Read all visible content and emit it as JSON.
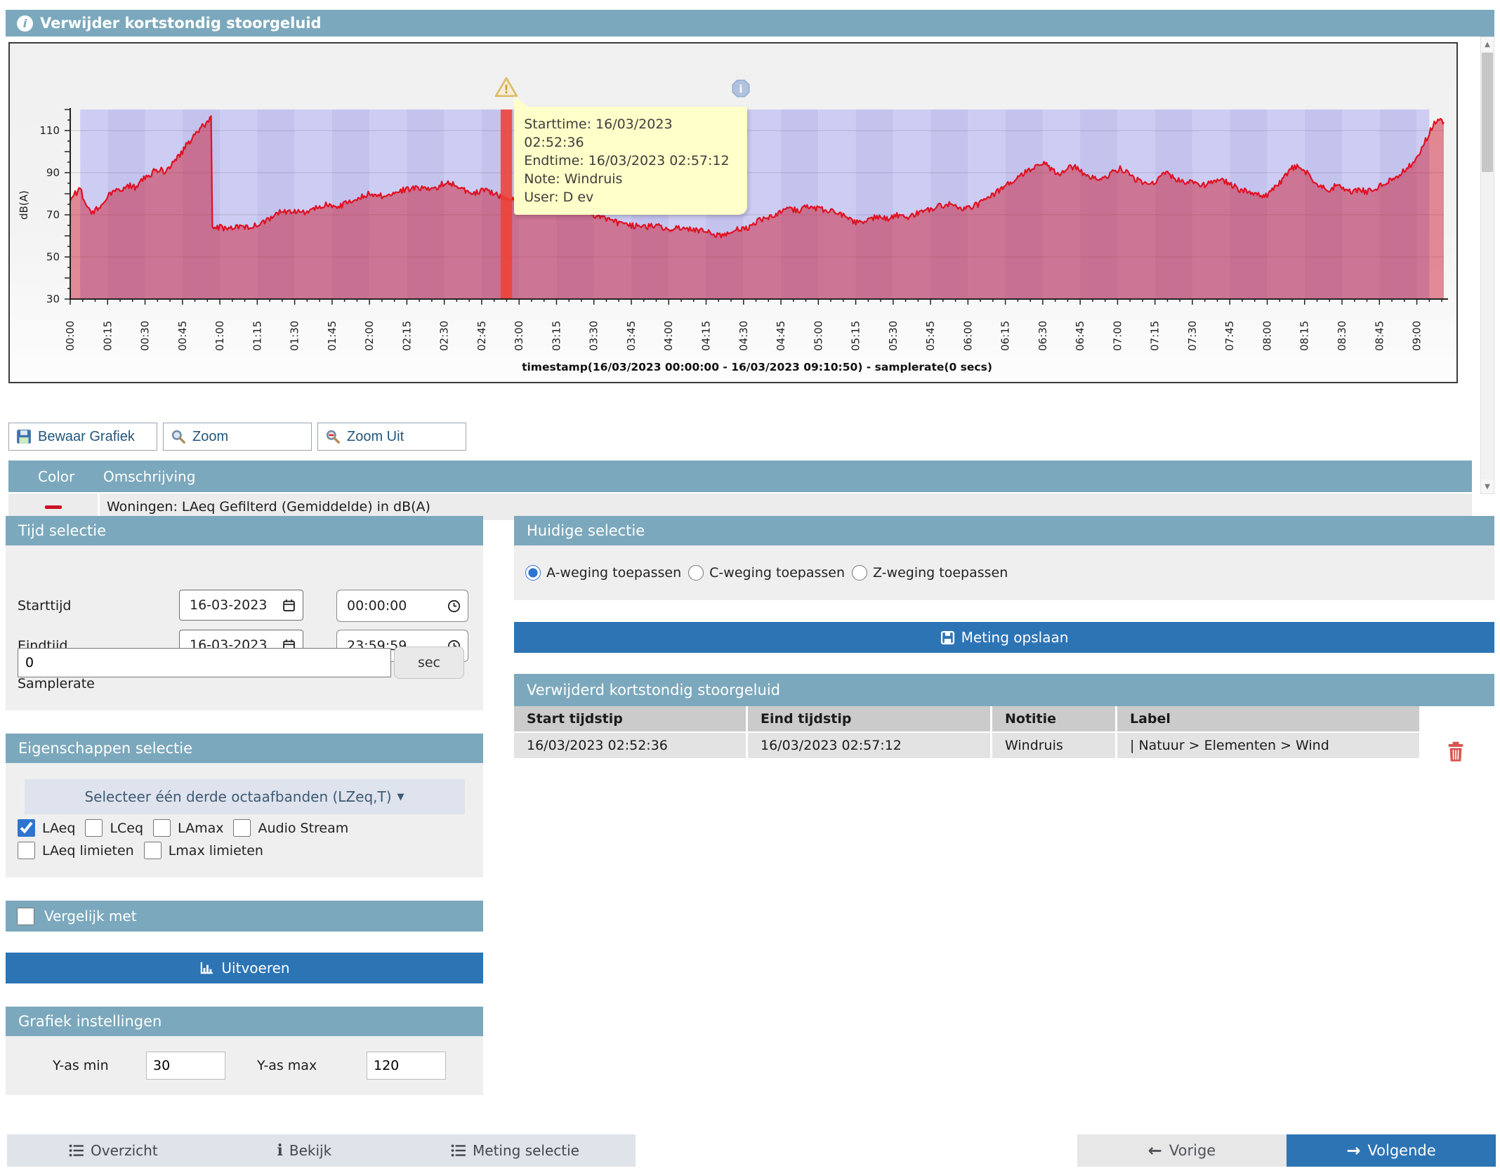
{
  "header": {
    "title": "Verwijder kortstondig stoorgeluid"
  },
  "chart": {
    "ylabel": "dB(A)",
    "caption": "timestamp(16/03/2023 00:00:00 - 16/03/2023 09:10:50) - samplerate(0 secs)",
    "tooltip": {
      "starttime": "Starttime: 16/03/2023 02:52:36",
      "endtime": "Endtime: 16/03/2023 02:57:12",
      "note": "Note: Windruis",
      "user": "User: D ev"
    }
  },
  "toolbar": {
    "save_graph": "Bewaar Grafiek",
    "zoom": "Zoom",
    "zoom_out": "Zoom Uit"
  },
  "legend": {
    "color_header": "Color",
    "description_header": "Omschrijving",
    "rows": [
      {
        "swatch_color": "#cc1122",
        "description": "Woningen: LAeq Gefilterd (Gemiddelde) in dB(A)"
      }
    ]
  },
  "tijd": {
    "title": "Tijd selectie",
    "starttijd_label": "Starttijd",
    "eindtijd_label": "Eindtijd",
    "start_date": "16-03-2023",
    "start_time": "00:00:00",
    "end_date": "16-03-2023",
    "end_time": "23:59:59",
    "samplerate_label": "Samplerate",
    "samplerate_value": "0",
    "samplerate_unit": "sec"
  },
  "eigenschappen": {
    "title": "Eigenschappen selectie",
    "dropdown_label": "Selecteer één derde octaafbanden (LZeq,T)",
    "checkboxes_row1": [
      {
        "label": "LAeq",
        "checked": true
      },
      {
        "label": "LCeq",
        "checked": false
      },
      {
        "label": "LAmax",
        "checked": false
      },
      {
        "label": "Audio Stream",
        "checked": false
      }
    ],
    "checkboxes_row2": [
      {
        "label": "LAeq limieten",
        "checked": false
      },
      {
        "label": "Lmax limieten",
        "checked": false
      }
    ]
  },
  "vergelijk": {
    "label": "Vergelijk met",
    "checked": false
  },
  "uitvoeren_label": "Uitvoeren",
  "grafiek": {
    "title": "Grafiek instellingen",
    "ymin_label": "Y-as min",
    "ymin_value": "30",
    "ymax_label": "Y-as max",
    "ymax_value": "120"
  },
  "huidige": {
    "title": "Huidige selectie",
    "radios": [
      {
        "label": "A-weging toepassen",
        "selected": true
      },
      {
        "label": "C-weging toepassen",
        "selected": false
      },
      {
        "label": "Z-weging toepassen",
        "selected": false
      }
    ]
  },
  "meting_opslaan_label": "Meting opslaan",
  "removed": {
    "title": "Verwijderd kortstondig stoorgeluid",
    "columns": [
      "Start tijdstip",
      "Eind tijdstip",
      "Notitie",
      "Label"
    ],
    "rows": [
      {
        "start": "16/03/2023 02:52:36",
        "end": "16/03/2023 02:57:12",
        "note": "Windruis",
        "label": "| Natuur > Elementen > Wind"
      }
    ]
  },
  "bottom_nav": {
    "overzicht": "Overzicht",
    "bekijk": "Bekijk",
    "meting_selectie": "Meting selectie",
    "vorige": "Vorige",
    "volgende": "Volgende"
  },
  "chart_data": {
    "type": "line",
    "title": "",
    "xlabel": "timestamp(16/03/2023 00:00:00 - 16/03/2023 09:10:50) - samplerate(0 secs)",
    "ylabel": "dB(A)",
    "ylim": [
      30,
      120
    ],
    "ygrid": [
      50,
      70,
      90,
      110
    ],
    "x_range_minutes": [
      0,
      550.83
    ],
    "x_tick_labels": [
      "00:00",
      "00:15",
      "00:30",
      "00:45",
      "01:00",
      "01:15",
      "01:30",
      "01:45",
      "02:00",
      "02:15",
      "02:30",
      "02:45",
      "03:00",
      "03:15",
      "03:30",
      "03:45",
      "04:00",
      "04:15",
      "04:30",
      "04:45",
      "05:00",
      "05:15",
      "05:30",
      "05:45",
      "06:00",
      "06:15",
      "06:30",
      "06:45",
      "07:00",
      "07:15",
      "07:30",
      "07:45",
      "08:00",
      "08:15",
      "08:30",
      "08:45",
      "09:00"
    ],
    "selection_region_minutes": [
      4,
      545
    ],
    "stripe_minutes": 15,
    "stripe_colors": [
      "#cdcdf4",
      "#c3c3ee"
    ],
    "fill_color": "rgba(206,30,52,0.50)",
    "removed_segment": {
      "start_min": 172.6,
      "end_min": 177.2,
      "start": "16/03/2023 02:52:36",
      "end": "16/03/2023 02:57:12",
      "note": "Windruis",
      "user": "D ev",
      "color": "#ee4138"
    },
    "event_marker_min": 269,
    "series": [
      {
        "name": "Woningen: LAeq Gefilterd (Gemiddelde) in dB(A)",
        "color": "#e01122",
        "points": [
          [
            0,
            78
          ],
          [
            2,
            80
          ],
          [
            4,
            82
          ],
          [
            6,
            76
          ],
          [
            8,
            71
          ],
          [
            10,
            72
          ],
          [
            12,
            74
          ],
          [
            14,
            77
          ],
          [
            16,
            80
          ],
          [
            18,
            82
          ],
          [
            20,
            81
          ],
          [
            22,
            83
          ],
          [
            24,
            84
          ],
          [
            26,
            83
          ],
          [
            28,
            86
          ],
          [
            30,
            88
          ],
          [
            32,
            89
          ],
          [
            34,
            91
          ],
          [
            36,
            92
          ],
          [
            38,
            90
          ],
          [
            40,
            93
          ],
          [
            42,
            96
          ],
          [
            44,
            98
          ],
          [
            45,
            100
          ],
          [
            47,
            104
          ],
          [
            49,
            106
          ],
          [
            51,
            110
          ],
          [
            53,
            112
          ],
          [
            55,
            114
          ],
          [
            56.5,
            116
          ],
          [
            57,
            63
          ],
          [
            60,
            64
          ],
          [
            64,
            63
          ],
          [
            68,
            65
          ],
          [
            72,
            64
          ],
          [
            76,
            66
          ],
          [
            80,
            68
          ],
          [
            84,
            71
          ],
          [
            88,
            72
          ],
          [
            92,
            71
          ],
          [
            96,
            72
          ],
          [
            100,
            74
          ],
          [
            104,
            75
          ],
          [
            108,
            74
          ],
          [
            112,
            76
          ],
          [
            116,
            78
          ],
          [
            120,
            80
          ],
          [
            125,
            79
          ],
          [
            130,
            81
          ],
          [
            135,
            82
          ],
          [
            140,
            83
          ],
          [
            145,
            82
          ],
          [
            150,
            85
          ],
          [
            155,
            84
          ],
          [
            158,
            82
          ],
          [
            162,
            80
          ],
          [
            166,
            82
          ],
          [
            170,
            80
          ],
          [
            172.5,
            79
          ],
          [
            177.5,
            77
          ],
          [
            182,
            76
          ],
          [
            186,
            75
          ],
          [
            190,
            76
          ],
          [
            195,
            74
          ],
          [
            200,
            73
          ],
          [
            205,
            72
          ],
          [
            210,
            70
          ],
          [
            215,
            68
          ],
          [
            220,
            66
          ],
          [
            225,
            65
          ],
          [
            230,
            64
          ],
          [
            235,
            65
          ],
          [
            240,
            63
          ],
          [
            245,
            64
          ],
          [
            250,
            63
          ],
          [
            255,
            62
          ],
          [
            260,
            60
          ],
          [
            265,
            62
          ],
          [
            268,
            63
          ],
          [
            272,
            64
          ],
          [
            276,
            67
          ],
          [
            280,
            69
          ],
          [
            284,
            71
          ],
          [
            288,
            73
          ],
          [
            292,
            72
          ],
          [
            296,
            74
          ],
          [
            300,
            73
          ],
          [
            304,
            72
          ],
          [
            308,
            71
          ],
          [
            312,
            68
          ],
          [
            316,
            66
          ],
          [
            320,
            68
          ],
          [
            324,
            69
          ],
          [
            328,
            68
          ],
          [
            332,
            70
          ],
          [
            336,
            69
          ],
          [
            340,
            71
          ],
          [
            344,
            72
          ],
          [
            348,
            74
          ],
          [
            352,
            75
          ],
          [
            356,
            73
          ],
          [
            360,
            73
          ],
          [
            364,
            75
          ],
          [
            368,
            78
          ],
          [
            372,
            81
          ],
          [
            376,
            85
          ],
          [
            380,
            88
          ],
          [
            384,
            91
          ],
          [
            388,
            94
          ],
          [
            391,
            95
          ],
          [
            394,
            91
          ],
          [
            397,
            89
          ],
          [
            400,
            92
          ],
          [
            403,
            93
          ],
          [
            406,
            90
          ],
          [
            409,
            88
          ],
          [
            412,
            87
          ],
          [
            415,
            88
          ],
          [
            418,
            90
          ],
          [
            421,
            92
          ],
          [
            424,
            90
          ],
          [
            427,
            87
          ],
          [
            430,
            85
          ],
          [
            433,
            84
          ],
          [
            436,
            87
          ],
          [
            439,
            90
          ],
          [
            442,
            88
          ],
          [
            445,
            86
          ],
          [
            448,
            85
          ],
          [
            451,
            86
          ],
          [
            454,
            84
          ],
          [
            457,
            85
          ],
          [
            460,
            87
          ],
          [
            463,
            86
          ],
          [
            466,
            84
          ],
          [
            469,
            82
          ],
          [
            472,
            81
          ],
          [
            475,
            80
          ],
          [
            478,
            79
          ],
          [
            481,
            80
          ],
          [
            484,
            84
          ],
          [
            487,
            88
          ],
          [
            490,
            92
          ],
          [
            493,
            93
          ],
          [
            496,
            90
          ],
          [
            499,
            86
          ],
          [
            502,
            83
          ],
          [
            505,
            82
          ],
          [
            508,
            84
          ],
          [
            511,
            82
          ],
          [
            514,
            81
          ],
          [
            517,
            82
          ],
          [
            520,
            81
          ],
          [
            523,
            82
          ],
          [
            526,
            84
          ],
          [
            529,
            86
          ],
          [
            532,
            88
          ],
          [
            535,
            91
          ],
          [
            538,
            94
          ],
          [
            541,
            99
          ],
          [
            543,
            104
          ],
          [
            545,
            109
          ],
          [
            547,
            113
          ],
          [
            549,
            116
          ],
          [
            550.8,
            114
          ]
        ]
      }
    ]
  }
}
